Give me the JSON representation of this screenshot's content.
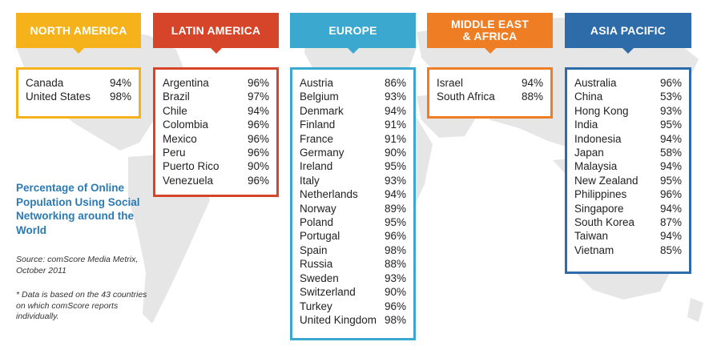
{
  "chart_data": {
    "type": "table",
    "title": "Percentage of Online Population Using Social Networking around the World",
    "source": "Source: comScore Media Metrix, October 2011",
    "footnote": "* Data is based on the 43 countries on which comScore reports individually.",
    "regions": [
      {
        "name": "NORTH AMERICA",
        "header_lines": [
          "NORTH AMERICA"
        ],
        "color": "#f5b21a",
        "rows": [
          {
            "country": "Canada",
            "value": "94%"
          },
          {
            "country": "United States",
            "value": "98%"
          }
        ]
      },
      {
        "name": "LATIN AMERICA",
        "header_lines": [
          "LATIN AMERICA"
        ],
        "color": "#d6452a",
        "rows": [
          {
            "country": "Argentina",
            "value": "96%"
          },
          {
            "country": "Brazil",
            "value": "97%"
          },
          {
            "country": "Chile",
            "value": "94%"
          },
          {
            "country": "Colombia",
            "value": "96%"
          },
          {
            "country": "Mexico",
            "value": "96%"
          },
          {
            "country": "Peru",
            "value": "96%"
          },
          {
            "country": "Puerto Rico",
            "value": "90%"
          },
          {
            "country": "Venezuela",
            "value": "96%"
          }
        ]
      },
      {
        "name": "EUROPE",
        "header_lines": [
          "EUROPE"
        ],
        "color": "#3ba9cf",
        "rows": [
          {
            "country": "Austria",
            "value": "86%"
          },
          {
            "country": "Belgium",
            "value": "93%"
          },
          {
            "country": "Denmark",
            "value": "94%"
          },
          {
            "country": "Finland",
            "value": "91%"
          },
          {
            "country": "France",
            "value": "91%"
          },
          {
            "country": "Germany",
            "value": "90%"
          },
          {
            "country": "Ireland",
            "value": "95%"
          },
          {
            "country": "Italy",
            "value": "93%"
          },
          {
            "country": "Netherlands",
            "value": "94%"
          },
          {
            "country": "Norway",
            "value": "89%"
          },
          {
            "country": "Poland",
            "value": "95%"
          },
          {
            "country": "Portugal",
            "value": "96%"
          },
          {
            "country": "Spain",
            "value": "98%"
          },
          {
            "country": "Russia",
            "value": "88%"
          },
          {
            "country": "Sweden",
            "value": "93%"
          },
          {
            "country": "Switzerland",
            "value": "90%"
          },
          {
            "country": "Turkey",
            "value": "96%"
          },
          {
            "country": "United Kingdom",
            "value": "98%"
          }
        ]
      },
      {
        "name": "MIDDLE EAST & AFRICA",
        "header_lines": [
          "MIDDLE EAST",
          "& AFRICA"
        ],
        "color": "#ef7d24",
        "rows": [
          {
            "country": "Israel",
            "value": "94%"
          },
          {
            "country": "South Africa",
            "value": "88%"
          }
        ]
      },
      {
        "name": "ASIA PACIFIC",
        "header_lines": [
          "ASIA PACIFIC"
        ],
        "color": "#2d6ba9",
        "rows": [
          {
            "country": "Australia",
            "value": "96%"
          },
          {
            "country": "China",
            "value": "53%"
          },
          {
            "country": "Hong Kong",
            "value": "93%"
          },
          {
            "country": "India",
            "value": "95%"
          },
          {
            "country": "Indonesia",
            "value": "94%"
          },
          {
            "country": "Japan",
            "value": "58%"
          },
          {
            "country": "Malaysia",
            "value": "94%"
          },
          {
            "country": "New Zealand",
            "value": "95%"
          },
          {
            "country": "Philippines",
            "value": "96%"
          },
          {
            "country": "Singapore",
            "value": "94%"
          },
          {
            "country": "South Korea",
            "value": "87%"
          },
          {
            "country": "Taiwan",
            "value": "94%"
          },
          {
            "country": "Vietnam",
            "value": "85%"
          }
        ]
      }
    ]
  }
}
